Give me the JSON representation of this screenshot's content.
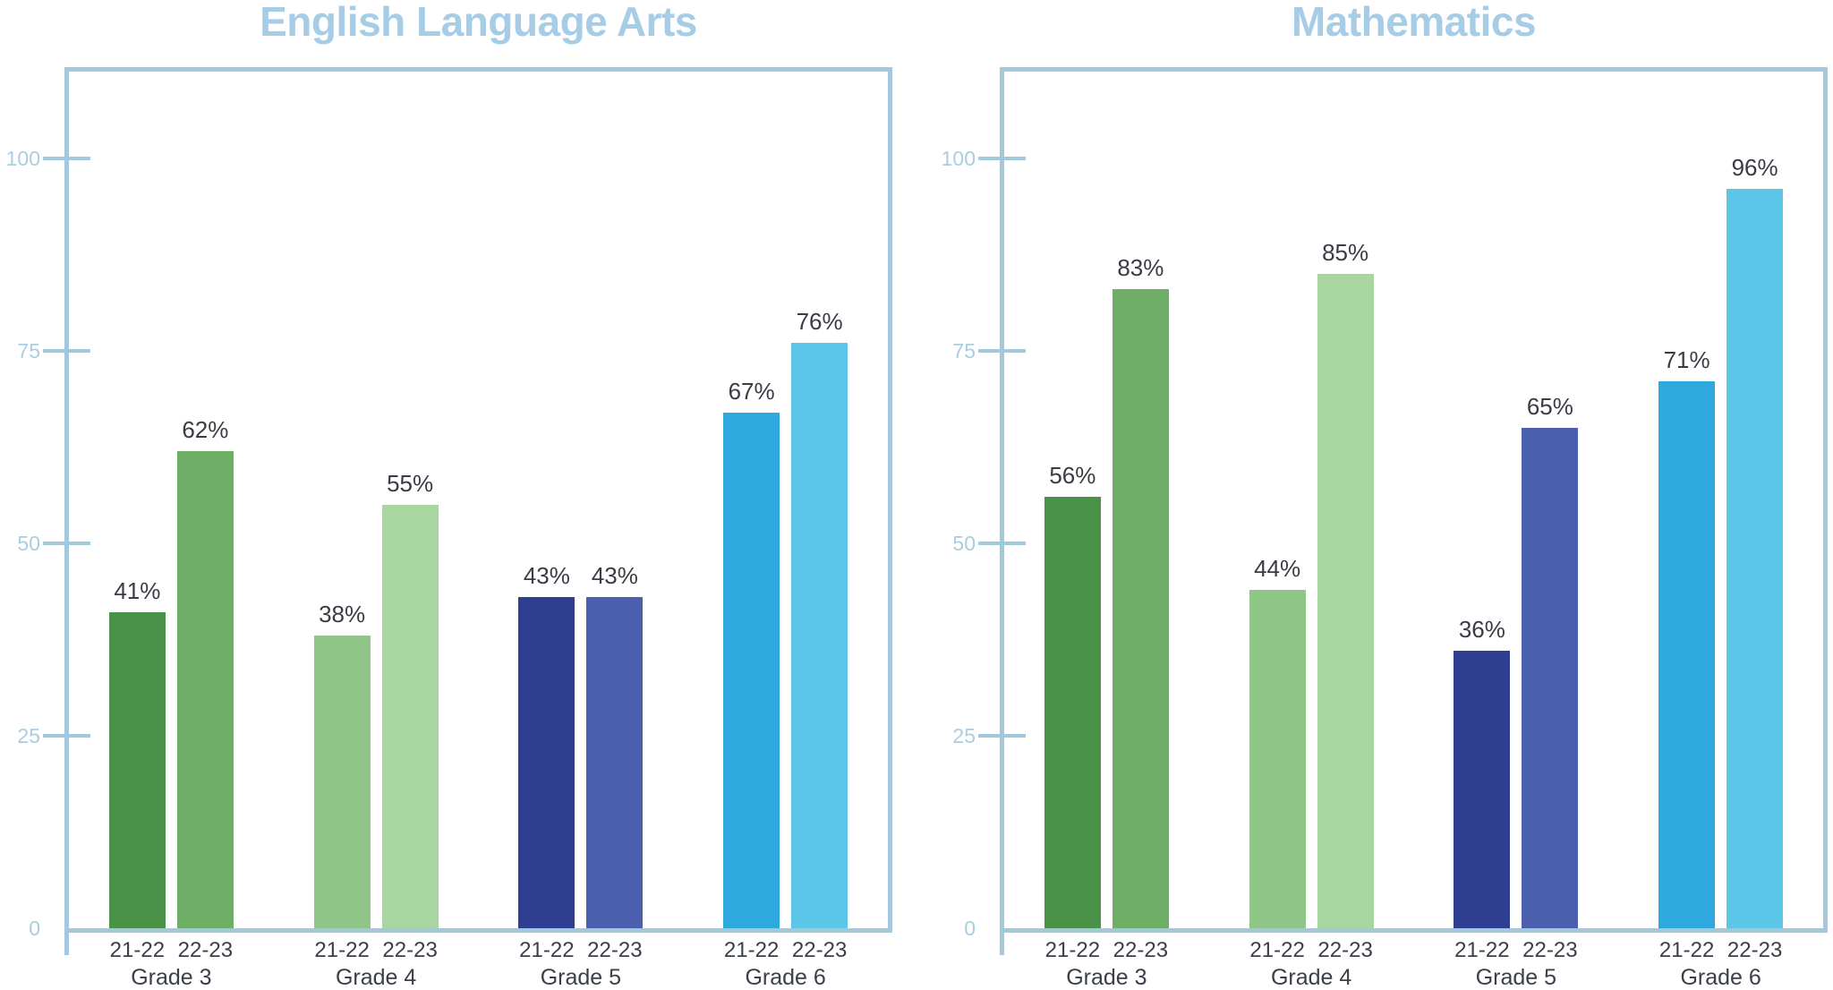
{
  "chart_data": [
    {
      "type": "bar",
      "title": "English Language Arts",
      "categories": [
        "Grade 3",
        "Grade 4",
        "Grade 5",
        "Grade 6"
      ],
      "series": [
        {
          "name": "21-22",
          "values": [
            41,
            38,
            43,
            67
          ],
          "labels": [
            "41%",
            "38%",
            "43%",
            "67%"
          ]
        },
        {
          "name": "22-23",
          "values": [
            62,
            55,
            43,
            76
          ],
          "labels": [
            "62%",
            "55%",
            "43%",
            "76%"
          ]
        }
      ],
      "xlabel": "",
      "ylabel": "",
      "ylim": [
        0,
        112
      ],
      "yticks": [
        0,
        25,
        50,
        75,
        100
      ],
      "grid": false,
      "legend": "none",
      "value_suffix": "%"
    },
    {
      "type": "bar",
      "title": "Mathematics",
      "categories": [
        "Grade 3",
        "Grade 4",
        "Grade 5",
        "Grade 6"
      ],
      "series": [
        {
          "name": "21-22",
          "values": [
            56,
            44,
            36,
            71
          ],
          "labels": [
            "56%",
            "44%",
            "36%",
            "71%"
          ]
        },
        {
          "name": "22-23",
          "values": [
            83,
            85,
            65,
            96
          ],
          "labels": [
            "83%",
            "85%",
            "65%",
            "96%"
          ]
        }
      ],
      "xlabel": "",
      "ylabel": "",
      "ylim": [
        0,
        112
      ],
      "yticks": [
        0,
        25,
        50,
        75,
        100
      ],
      "grid": false,
      "legend": "none",
      "value_suffix": "%"
    }
  ],
  "palette": {
    "series_colors_by_category": [
      [
        "#4a9247",
        "#6fae66"
      ],
      [
        "#8fc687",
        "#a9d5a0"
      ],
      [
        "#2e3e90",
        "#4a5fae"
      ],
      [
        "#2fa9dd",
        "#5bc6e8"
      ]
    ],
    "axis": "#a2c8dd",
    "title_text": "#a6cde5",
    "tick_label": "#a9cee0",
    "value_label": "#3b3b45",
    "category_label": "#3a3f4a"
  }
}
